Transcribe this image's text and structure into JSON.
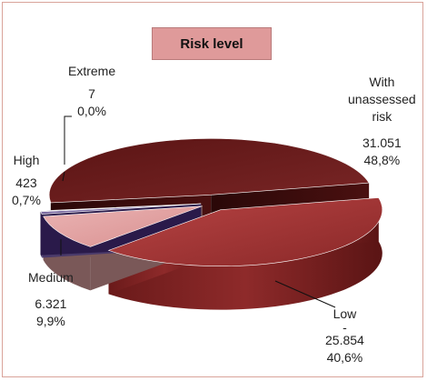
{
  "chart_data": {
    "type": "pie",
    "title": "Risk level",
    "slices": [
      {
        "label": "With unassessed risk",
        "label_lines": [
          "With",
          "unassessed",
          "risk"
        ],
        "count": "31.051",
        "percent": "48,8%",
        "value": 48.8,
        "color": "#6b1f1f"
      },
      {
        "label": "Low",
        "label_lines": [
          "Low",
          "-"
        ],
        "count": "25.854",
        "percent": "40,6%",
        "value": 40.6,
        "color": "#9e3232"
      },
      {
        "label": "Medium",
        "label_lines": [
          "Medium"
        ],
        "count": "6.321",
        "percent": "9,9%",
        "value": 9.9,
        "color": "#e0a0a0"
      },
      {
        "label": "High",
        "label_lines": [
          "High"
        ],
        "count": "423",
        "percent": "0,7%",
        "value": 0.7,
        "color": "#7a6aa0"
      },
      {
        "label": "Extreme",
        "label_lines": [
          "Extreme"
        ],
        "count": "7",
        "percent": "0,0%",
        "value": 0.0,
        "color": "#3a2a5a"
      }
    ],
    "legend": "none",
    "style": "3d-exploded-pie"
  }
}
